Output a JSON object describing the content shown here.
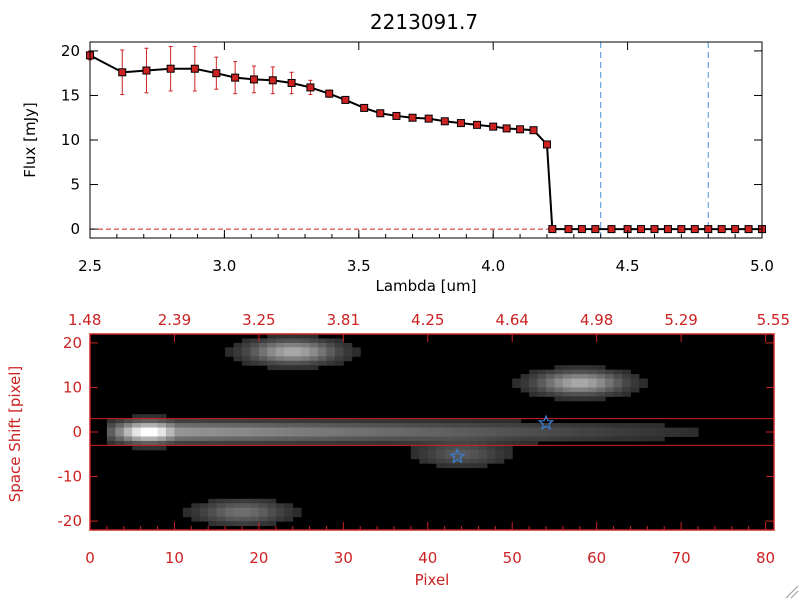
{
  "chart_data": [
    {
      "type": "line",
      "title": "2213091.7",
      "xlabel": "Lambda [um]",
      "ylabel": "Flux [mJy]",
      "xlim": [
        2.5,
        5.0
      ],
      "ylim": [
        -1,
        21
      ],
      "x_ticks": [
        "2.5",
        "3.0",
        "3.5",
        "4.0",
        "4.5",
        "5.0"
      ],
      "y_ticks": [
        "0",
        "5",
        "10",
        "15",
        "20"
      ],
      "line_color": "#000000",
      "marker_color": "#cc2222",
      "errorbar_color": "#cc2222",
      "dashed_lines": {
        "x": [
          4.4,
          4.8
        ],
        "color": "#4a90d9"
      },
      "zero_line_color": "#cc2222",
      "x": [
        2.5,
        2.62,
        2.71,
        2.8,
        2.89,
        2.97,
        3.04,
        3.11,
        3.18,
        3.25,
        3.32,
        3.39,
        3.45,
        3.52,
        3.58,
        3.64,
        3.7,
        3.76,
        3.82,
        3.88,
        3.94,
        4.0,
        4.05,
        4.1,
        4.15,
        4.2,
        4.22,
        4.28,
        4.33,
        4.38,
        4.44,
        4.5,
        4.55,
        4.6,
        4.65,
        4.7,
        4.75,
        4.8,
        4.85,
        4.9,
        4.95,
        5.0
      ],
      "y": [
        19.5,
        17.6,
        17.8,
        18.0,
        18.0,
        17.5,
        17.0,
        16.8,
        16.7,
        16.4,
        15.9,
        15.2,
        14.5,
        13.6,
        13.0,
        12.7,
        12.5,
        12.4,
        12.1,
        11.9,
        11.7,
        11.5,
        11.3,
        11.2,
        11.1,
        9.5,
        0,
        0,
        0,
        0,
        0,
        0,
        0,
        0,
        0,
        0,
        0,
        0,
        0,
        0,
        0,
        0
      ],
      "yerr": [
        0.5,
        2.5,
        2.5,
        2.5,
        2.5,
        1.8,
        1.8,
        1.5,
        1.5,
        1.2,
        0.8,
        0.4,
        0.3,
        0.3,
        0.25,
        0.2,
        0.2,
        0.2,
        0.2,
        0.2,
        0.2,
        0.2,
        0.2,
        0.2,
        0.2,
        0.2,
        0,
        0,
        0,
        0,
        0,
        0,
        0,
        0,
        0,
        0,
        0,
        0,
        0,
        0,
        0,
        0
      ]
    },
    {
      "type": "heatmap",
      "xlabel": "Pixel",
      "ylabel": "Space Shift [pixel]",
      "xlim": [
        0,
        81
      ],
      "ylim": [
        -22,
        22
      ],
      "x_ticks": [
        "0",
        "10",
        "20",
        "30",
        "40",
        "50",
        "60",
        "70",
        "80"
      ],
      "y_ticks": [
        "-20",
        "-10",
        "0",
        "10",
        "20"
      ],
      "top_ticks": [
        "1.48",
        "2.39",
        "3.25",
        "3.81",
        "4.25",
        "4.64",
        "4.98",
        "5.29",
        "5.55"
      ],
      "axis_color": "#cc2222",
      "background": "#000000",
      "aperture_lines": {
        "y": [
          3,
          -3
        ],
        "color": "#cc2222"
      },
      "star_markers": [
        {
          "x": 43.5,
          "y": -5.5
        },
        {
          "x": 54,
          "y": 2
        }
      ],
      "star_color": "#3a7fd5",
      "sources": [
        {
          "x": 7,
          "y": 0,
          "peak": 1.0
        },
        {
          "x": 24,
          "y": 18,
          "peak": 0.6
        },
        {
          "x": 58,
          "y": 11,
          "peak": 0.6
        },
        {
          "x": 18,
          "y": -18,
          "peak": 0.35
        },
        {
          "x": 44,
          "y": -5,
          "peak": 0.25
        }
      ]
    }
  ]
}
